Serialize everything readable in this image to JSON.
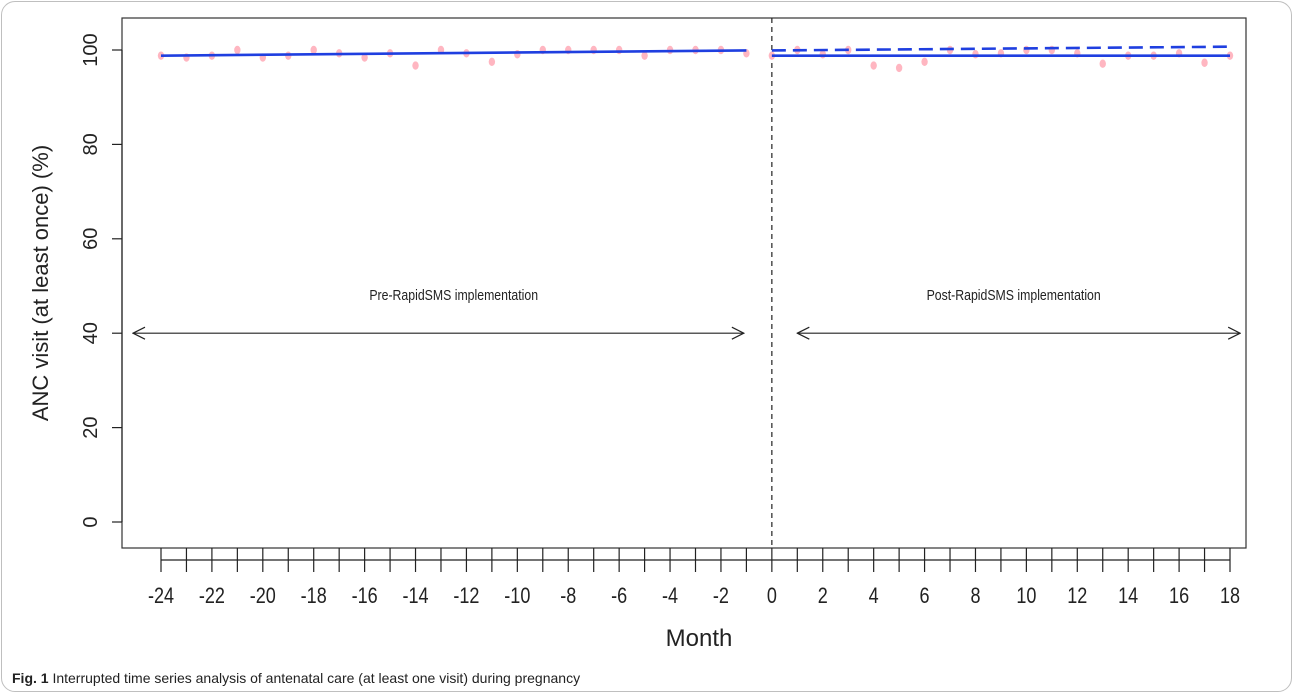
{
  "chart_data": {
    "type": "scatter",
    "xlabel": "Month",
    "ylabel": "ANC visit (at least once) (%)",
    "xlim": [
      -24,
      18
    ],
    "ylim": [
      0,
      100
    ],
    "x_ticks": [
      -24,
      -23,
      -22,
      -21,
      -20,
      -19,
      -18,
      -17,
      -16,
      -15,
      -14,
      -13,
      -12,
      -11,
      -10,
      -9,
      -8,
      -7,
      -6,
      -5,
      -4,
      -3,
      -2,
      -1,
      0,
      1,
      2,
      3,
      4,
      5,
      6,
      7,
      8,
      9,
      10,
      11,
      12,
      13,
      14,
      15,
      16,
      17,
      18
    ],
    "x_tick_labels": [
      {
        "x": -24,
        "label": "-24"
      },
      {
        "x": -22,
        "label": "-22"
      },
      {
        "x": -20,
        "label": "-20"
      },
      {
        "x": -18,
        "label": "-18"
      },
      {
        "x": -16,
        "label": "-16"
      },
      {
        "x": -14,
        "label": "-14"
      },
      {
        "x": -12,
        "label": "-12"
      },
      {
        "x": -10,
        "label": "-10"
      },
      {
        "x": -8,
        "label": "-8"
      },
      {
        "x": -6,
        "label": "-6"
      },
      {
        "x": -4,
        "label": "-4"
      },
      {
        "x": -2,
        "label": "-2"
      },
      {
        "x": 0,
        "label": "0"
      },
      {
        "x": 2,
        "label": "2"
      },
      {
        "x": 4,
        "label": "4"
      },
      {
        "x": 6,
        "label": "6"
      },
      {
        "x": 8,
        "label": "8"
      },
      {
        "x": 10,
        "label": "10"
      },
      {
        "x": 12,
        "label": "12"
      },
      {
        "x": 14,
        "label": "14"
      },
      {
        "x": 16,
        "label": "16"
      },
      {
        "x": 18,
        "label": "18"
      }
    ],
    "y_ticks": [
      {
        "y": 0,
        "label": "0"
      },
      {
        "y": 20,
        "label": "20"
      },
      {
        "y": 40,
        "label": "40"
      },
      {
        "y": 60,
        "label": "60"
      },
      {
        "y": 80,
        "label": "80"
      },
      {
        "y": 100,
        "label": "100"
      }
    ],
    "grid": false,
    "points": [
      {
        "x": -24,
        "y": 98.8
      },
      {
        "x": -23,
        "y": 98.4
      },
      {
        "x": -22,
        "y": 98.8
      },
      {
        "x": -21,
        "y": 100
      },
      {
        "x": -20,
        "y": 98.4
      },
      {
        "x": -19,
        "y": 98.8
      },
      {
        "x": -18,
        "y": 100
      },
      {
        "x": -17,
        "y": 99.3
      },
      {
        "x": -16,
        "y": 98.4
      },
      {
        "x": -15,
        "y": 99.3
      },
      {
        "x": -14,
        "y": 96.7
      },
      {
        "x": -13,
        "y": 100
      },
      {
        "x": -12,
        "y": 99.3
      },
      {
        "x": -11,
        "y": 97.5
      },
      {
        "x": -10,
        "y": 99.1
      },
      {
        "x": -9,
        "y": 100
      },
      {
        "x": -8,
        "y": 100
      },
      {
        "x": -7,
        "y": 100
      },
      {
        "x": -6,
        "y": 100
      },
      {
        "x": -5,
        "y": 98.8
      },
      {
        "x": -4,
        "y": 100
      },
      {
        "x": -3,
        "y": 100
      },
      {
        "x": -2,
        "y": 100
      },
      {
        "x": -1,
        "y": 99.3
      },
      {
        "x": 0,
        "y": 98.8
      },
      {
        "x": 1,
        "y": 100
      },
      {
        "x": 2,
        "y": 99.1
      },
      {
        "x": 3,
        "y": 100
      },
      {
        "x": 4,
        "y": 96.7
      },
      {
        "x": 5,
        "y": 96.2
      },
      {
        "x": 6,
        "y": 97.5
      },
      {
        "x": 7,
        "y": 100
      },
      {
        "x": 8,
        "y": 99.1
      },
      {
        "x": 9,
        "y": 99.3
      },
      {
        "x": 10,
        "y": 100
      },
      {
        "x": 11,
        "y": 100
      },
      {
        "x": 12,
        "y": 99.3
      },
      {
        "x": 13,
        "y": 97.1
      },
      {
        "x": 14,
        "y": 98.8
      },
      {
        "x": 15,
        "y": 98.8
      },
      {
        "x": 16,
        "y": 99.3
      },
      {
        "x": 17,
        "y": 97.3
      },
      {
        "x": 18,
        "y": 98.8
      }
    ],
    "point_color": "#ffb6c1",
    "fit_lines": [
      {
        "style": "solid",
        "color": "#1f3fe0",
        "x": [
          -24,
          -1
        ],
        "y": [
          98.8,
          99.9
        ]
      },
      {
        "style": "solid",
        "color": "#1f3fe0",
        "x": [
          0,
          18
        ],
        "y": [
          98.8,
          98.8
        ]
      },
      {
        "style": "dashed",
        "color": "#1f3fe0",
        "x": [
          0,
          18
        ],
        "y": [
          99.9,
          100.7
        ]
      }
    ],
    "intervention_x": 0,
    "annotations": [
      {
        "text": "Pre-RapidSMS implementation",
        "x": -12.5,
        "y": 47
      },
      {
        "text": "Post-RapidSMS implementation",
        "x": 9.5,
        "y": 47
      }
    ],
    "arrows": [
      {
        "x": [
          -25.1,
          -1.1
        ],
        "y": 40
      },
      {
        "x": 1.0,
        "x2": 18.4,
        "y": 40
      }
    ]
  },
  "caption": {
    "label": "Fig. 1",
    "text": " Interrupted time series analysis of antenatal care (at least one visit) during pregnancy"
  }
}
